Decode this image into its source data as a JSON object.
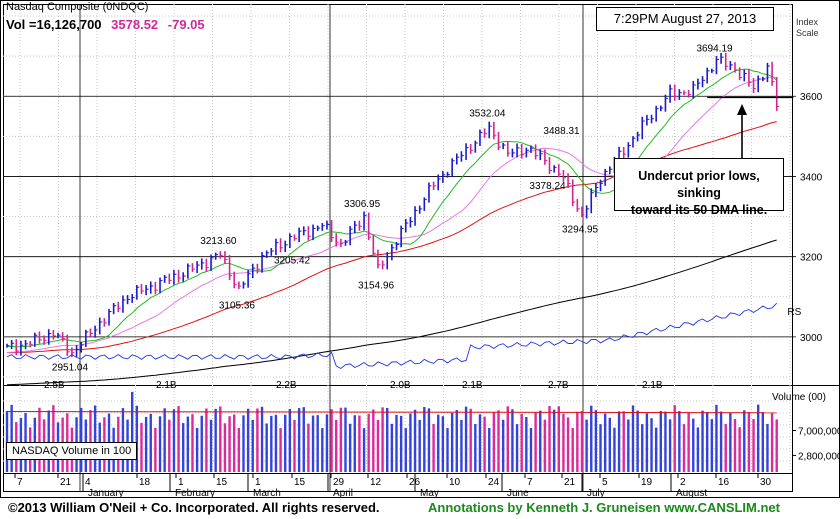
{
  "header": {
    "title": "Nasdaq Composite  (0NDQC)",
    "volume": "Vol =16,126,700",
    "price": "3578.52",
    "change": "-79.05",
    "datetime": "7:29PM August 27, 2013",
    "scale_label": [
      "Index",
      "Scale"
    ]
  },
  "annotation": [
    "Undercut prior lows, sinking",
    "toward its 50 DMA line."
  ],
  "volume_box": "NASDAQ Volume in 100",
  "footer": {
    "left": "©2013 William O'Neil + Co. Incorporated. All rights reserved.",
    "right": "Annotations by Kenneth J. Gruneisen www.CANSLIM.net"
  },
  "chart_data": {
    "type": "line",
    "price_axis": {
      "ticks": [
        3000,
        3200,
        3400,
        3600
      ],
      "range": [
        2880,
        3830
      ]
    },
    "rs_label": "RS",
    "price_labels": [
      {
        "text": "2951.04",
        "day": 14,
        "value": 2951.04
      },
      {
        "text": "3213.60",
        "day": 46,
        "value": 3213.6
      },
      {
        "text": "3105.36",
        "day": 50,
        "value": 3105.36
      },
      {
        "text": "3205.42",
        "day": 58,
        "value": 3205.42
      },
      {
        "text": "3306.95",
        "day": 77,
        "value": 3306.95
      },
      {
        "text": "3154.96",
        "day": 80,
        "value": 3154.96
      },
      {
        "text": "3532.04",
        "day": 104,
        "value": 3532.04
      },
      {
        "text": "3488.31",
        "day": 120,
        "value": 3488.31
      },
      {
        "text": "3378.24",
        "day": 120,
        "value": 3378.24
      },
      {
        "text": "3294.95",
        "day": 124,
        "value": 3294.95
      },
      {
        "text": "3694.19",
        "day": 153,
        "value": 3694.19
      }
    ],
    "volume_panel": {
      "label": "Volume (00)",
      "ticks": [
        {
          "label": "7,000,000",
          "value": 7000000
        },
        {
          "label": "2,800,000",
          "value": 2800000
        }
      ],
      "range": [
        0,
        14000000
      ],
      "avg_labels": [
        "2.5B",
        "2.1B",
        "2.2B",
        "2.0B",
        "2.1B",
        "2.7B",
        "2.1B"
      ]
    },
    "x_axis": {
      "day_ticks": [
        "7",
        "21",
        "4",
        "18",
        "1",
        "15",
        "1",
        "15",
        "29",
        "12",
        "26",
        "10",
        "24",
        "7",
        "21",
        "5",
        "19",
        "2",
        "16",
        "30"
      ],
      "months": [
        "January",
        "February",
        "March",
        "April",
        "May",
        "June",
        "July",
        "August"
      ]
    }
  }
}
